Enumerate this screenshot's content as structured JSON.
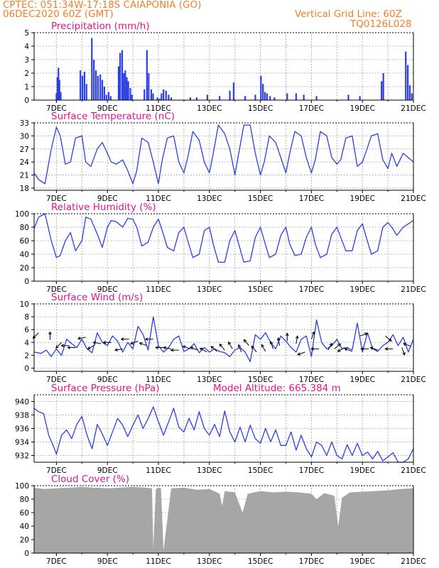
{
  "header": {
    "line1": "CPTEC:   051:34W-17:18S   CAIAPONIA (GO)",
    "line2": "06DEC2020 60Z (GMT)",
    "grid_note": "Vertical Grid Line: 60Z",
    "run_id": "TQ0126L028"
  },
  "colors": {
    "header": "#f0802a",
    "panel_title": "#e0148c",
    "series": "#2b3fe3",
    "cloud": "#a6a6a6",
    "grid": "#8a8a8a"
  },
  "x_axis": {
    "start_day": 6.125,
    "end_day": 21.0,
    "tick_days": [
      7,
      9,
      11,
      13,
      15,
      17,
      19,
      21
    ],
    "tick_labels": [
      "7DEC",
      "9DEC",
      "11DEC",
      "13DEC",
      "15DEC",
      "17DEC",
      "19DEC",
      "21DEC"
    ],
    "grid_days": [
      7,
      8,
      9,
      10,
      11,
      12,
      13,
      14,
      15,
      16,
      17,
      18,
      19,
      20
    ]
  },
  "chart_data": [
    {
      "type": "bar",
      "title": "Precipitation (mm/h)",
      "ylim": [
        0,
        5
      ],
      "yticks": [
        0,
        1,
        2,
        3,
        4,
        5
      ],
      "series": [
        {
          "x": [
            7.0,
            7.04,
            7.08,
            7.12,
            7.17,
            7.94,
            8.02,
            8.1,
            8.18,
            8.39,
            8.47,
            8.55,
            8.63,
            8.72,
            8.8,
            8.88,
            8.96,
            9.05,
            9.13,
            9.44,
            9.5,
            9.58,
            9.64,
            9.7,
            9.76,
            9.82,
            9.9,
            9.96,
            10.45,
            10.55,
            10.62,
            10.72,
            10.79,
            10.96,
            11.05,
            11.12,
            11.2,
            11.3,
            11.4,
            11.5,
            12.25,
            12.5,
            12.92,
            13.4,
            13.8,
            13.95,
            14.4,
            14.8,
            15.02,
            15.1,
            15.18,
            15.26,
            15.38,
            15.55,
            16.05,
            16.4,
            16.7,
            17.2,
            18.45,
            18.9,
            19.75,
            19.82,
            20.7,
            20.78,
            20.86,
            20.94
          ],
          "values": [
            0.5,
            1.7,
            2.4,
            1.5,
            0.6,
            2.2,
            1.8,
            2.1,
            1.2,
            4.6,
            3.0,
            2.2,
            1.8,
            1.9,
            1.5,
            1.0,
            0.4,
            0.6,
            0.3,
            2.5,
            3.5,
            3.7,
            2.0,
            2.2,
            1.7,
            1.4,
            0.9,
            0.4,
            0.8,
            3.7,
            2.0,
            0.8,
            0.5,
            0.2,
            0.1,
            0.5,
            0.8,
            0.7,
            0.4,
            0.2,
            0.2,
            0.2,
            0.4,
            0.3,
            0.7,
            1.3,
            0.3,
            0.4,
            1.8,
            1.2,
            0.6,
            0.5,
            0.3,
            0.2,
            0.5,
            0.5,
            0.4,
            0.3,
            0.4,
            0.3,
            1.4,
            2.0,
            3.6,
            2.6,
            1.1,
            0.5
          ]
        }
      ]
    },
    {
      "type": "line",
      "title": "Surface Temperature (nC)",
      "ylim": [
        17.5,
        33
      ],
      "yticks": [
        18,
        21,
        24,
        27,
        30,
        33
      ],
      "series": [
        {
          "x": [
            6.125,
            6.3,
            6.55,
            6.8,
            7.0,
            7.15,
            7.35,
            7.55,
            7.75,
            8.0,
            8.15,
            8.35,
            8.6,
            8.8,
            9.0,
            9.15,
            9.35,
            9.6,
            9.8,
            10.0,
            10.15,
            10.35,
            10.6,
            10.8,
            11.0,
            11.15,
            11.35,
            11.6,
            11.8,
            12.0,
            12.15,
            12.35,
            12.6,
            12.8,
            13.0,
            13.15,
            13.35,
            13.6,
            13.8,
            14.0,
            14.15,
            14.35,
            14.6,
            14.8,
            15.0,
            15.15,
            15.35,
            15.6,
            15.8,
            16.0,
            16.15,
            16.35,
            16.6,
            16.8,
            17.0,
            17.15,
            17.35,
            17.6,
            17.8,
            18.0,
            18.15,
            18.35,
            18.6,
            18.8,
            19.0,
            19.15,
            19.35,
            19.6,
            19.8,
            20.0,
            20.15,
            20.35,
            20.6,
            20.8,
            21.0
          ],
          "values": [
            21.5,
            20,
            19,
            27,
            32,
            30,
            23.5,
            24,
            29.5,
            30,
            24,
            23,
            27,
            28.5,
            26,
            24,
            23.5,
            24.5,
            22,
            19,
            22,
            29.5,
            28.5,
            24,
            19,
            24.5,
            29.5,
            30,
            24,
            21.5,
            25,
            31,
            29,
            24,
            21.5,
            26,
            32.5,
            30.5,
            27,
            21,
            26,
            32.5,
            32.5,
            26,
            21,
            24,
            30,
            28.5,
            25,
            21.5,
            26,
            31,
            30,
            25,
            21.5,
            24.5,
            31,
            30,
            25,
            23.5,
            24.5,
            29.5,
            30,
            23,
            24,
            26.5,
            30,
            30.5,
            24.5,
            22.5,
            26,
            23,
            26,
            25,
            24
          ]
        }
      ]
    },
    {
      "type": "line",
      "title": "Relative Humidity (%)",
      "ylim": [
        0,
        100
      ],
      "yticks": [
        0,
        20,
        40,
        60,
        80,
        100
      ],
      "series": [
        {
          "x": [
            6.125,
            6.3,
            6.55,
            6.8,
            7.0,
            7.15,
            7.35,
            7.55,
            7.75,
            8.0,
            8.15,
            8.35,
            8.6,
            8.8,
            9.0,
            9.15,
            9.35,
            9.6,
            9.8,
            10.0,
            10.15,
            10.35,
            10.6,
            10.8,
            11.0,
            11.15,
            11.35,
            11.6,
            11.8,
            12.0,
            12.15,
            12.35,
            12.6,
            12.8,
            13.0,
            13.15,
            13.35,
            13.6,
            13.8,
            14.0,
            14.15,
            14.35,
            14.6,
            14.8,
            15.0,
            15.15,
            15.35,
            15.6,
            15.8,
            16.0,
            16.15,
            16.35,
            16.6,
            16.8,
            17.0,
            17.15,
            17.35,
            17.6,
            17.8,
            18.0,
            18.15,
            18.35,
            18.6,
            18.8,
            19.0,
            19.15,
            19.35,
            19.6,
            19.8,
            20.0,
            20.15,
            20.35,
            20.6,
            20.8,
            21.0
          ],
          "values": [
            78,
            95,
            100,
            60,
            35,
            38,
            60,
            72,
            45,
            60,
            95,
            92,
            70,
            50,
            80,
            90,
            88,
            80,
            93,
            92,
            80,
            52,
            58,
            80,
            92,
            75,
            50,
            45,
            72,
            80,
            60,
            35,
            40,
            75,
            80,
            55,
            28,
            28,
            60,
            75,
            55,
            28,
            30,
            65,
            80,
            60,
            35,
            40,
            68,
            80,
            55,
            38,
            40,
            65,
            80,
            55,
            35,
            40,
            70,
            80,
            65,
            45,
            45,
            75,
            85,
            65,
            40,
            45,
            80,
            87,
            80,
            68,
            80,
            85,
            90
          ]
        }
      ]
    },
    {
      "type": "line",
      "title": "Surface Wind (m/s)",
      "ylim": [
        -0.5,
        10
      ],
      "yticks": [
        0,
        2,
        4,
        6,
        8,
        10
      ],
      "series": [
        {
          "x": [
            6.125,
            6.4,
            6.6,
            6.8,
            7.0,
            7.2,
            7.4,
            7.6,
            7.8,
            8.0,
            8.2,
            8.4,
            8.6,
            8.8,
            9.0,
            9.2,
            9.4,
            9.6,
            9.8,
            10.0,
            10.2,
            10.4,
            10.6,
            10.8,
            11.0,
            11.2,
            11.4,
            11.6,
            11.8,
            12.0,
            12.2,
            12.4,
            12.6,
            12.8,
            13.0,
            13.2,
            13.4,
            13.6,
            13.8,
            14.0,
            14.2,
            14.4,
            14.6,
            14.8,
            15.0,
            15.2,
            15.4,
            15.6,
            15.8,
            16.0,
            16.2,
            16.4,
            16.6,
            16.8,
            17.0,
            17.2,
            17.4,
            17.6,
            17.8,
            18.0,
            18.2,
            18.4,
            18.6,
            18.8,
            19.0,
            19.2,
            19.4,
            19.6,
            19.8,
            20.0,
            20.2,
            20.4,
            20.6,
            20.8,
            21.0
          ],
          "values": [
            2.5,
            2.3,
            2.8,
            1.8,
            3.0,
            2.0,
            4.5,
            3.8,
            3.2,
            4.5,
            3.0,
            2.4,
            5.5,
            4.0,
            3.5,
            5.0,
            4.2,
            2.5,
            4.0,
            3.0,
            6.5,
            5.2,
            2.8,
            8.0,
            3.5,
            2.5,
            3.2,
            4.5,
            5.0,
            2.6,
            3.0,
            3.8,
            2.4,
            3.2,
            2.5,
            3.0,
            2.6,
            2.4,
            1.8,
            2.8,
            3.2,
            2.5,
            1.0,
            5.2,
            4.5,
            5.5,
            4.0,
            3.0,
            5.0,
            4.2,
            3.2,
            2.5,
            4.5,
            5.0,
            1.8,
            7.5,
            4.0,
            3.0,
            3.5,
            4.5,
            3.0,
            3.2,
            2.8,
            7.0,
            2.5,
            5.5,
            3.0,
            2.6,
            3.5,
            4.0,
            5.2,
            3.5,
            4.8,
            2.5,
            4.5
          ]
        }
      ],
      "wind_barbs": {
        "x": [
          6.3,
          6.75,
          7.2,
          7.5,
          7.75,
          8.15,
          8.5,
          8.75,
          9.15,
          9.6,
          9.85,
          10.2,
          10.55,
          10.8,
          11.2,
          11.5,
          11.8,
          12.25,
          12.55,
          12.9,
          13.3,
          13.6,
          13.9,
          14.25,
          14.55,
          14.85,
          15.2,
          15.5,
          15.75,
          16.05,
          16.4,
          16.75,
          17.0,
          17.3,
          17.65,
          17.9,
          18.3,
          18.6,
          18.9,
          19.25,
          19.6,
          19.9,
          20.2,
          20.55,
          20.9
        ],
        "speed": [
          5.5,
          4.4,
          4.0,
          3.5,
          3.2,
          4.8,
          3.6,
          3.8,
          4.0,
          3.0,
          4.5,
          4.2,
          3.5,
          4.5,
          3.2,
          3.0,
          2.8,
          3.0,
          2.8,
          2.5,
          2.6,
          2.8,
          3.0,
          2.5,
          3.5,
          2.5,
          2.6,
          3.0,
          3.5,
          4.2,
          3.8,
          2.5,
          4.5,
          3.0,
          2.8,
          3.0,
          3.2,
          2.6,
          5.0,
          3.0,
          2.8,
          5.0,
          3.0,
          3.2,
          3.4
        ],
        "dir_deg": [
          135,
          270,
          135,
          180,
          180,
          170,
          150,
          190,
          180,
          170,
          180,
          160,
          200,
          180,
          180,
          190,
          180,
          200,
          200,
          210,
          220,
          230,
          240,
          250,
          230,
          230,
          240,
          250,
          260,
          270,
          280,
          160,
          290,
          180,
          300,
          320,
          150,
          200,
          340,
          180,
          200,
          40,
          180,
          70,
          200
        ]
      }
    },
    {
      "type": "line",
      "title": "Surface Pressure (hPa)",
      "ylim": [
        931,
        941
      ],
      "yticks": [
        932,
        934,
        936,
        938,
        940
      ],
      "series": [
        {
          "x": [
            6.125,
            6.3,
            6.5,
            6.7,
            6.9,
            7.0,
            7.2,
            7.4,
            7.6,
            7.8,
            8.0,
            8.2,
            8.4,
            8.6,
            8.8,
            9.0,
            9.2,
            9.4,
            9.6,
            9.8,
            10.0,
            10.2,
            10.4,
            10.6,
            10.8,
            11.0,
            11.2,
            11.4,
            11.6,
            11.8,
            12.0,
            12.2,
            12.4,
            12.6,
            12.8,
            13.0,
            13.2,
            13.4,
            13.6,
            13.8,
            14.0,
            14.2,
            14.4,
            14.6,
            14.8,
            15.0,
            15.2,
            15.4,
            15.6,
            15.8,
            16.0,
            16.2,
            16.4,
            16.6,
            16.8,
            17.0,
            17.2,
            17.4,
            17.6,
            17.8,
            18.0,
            18.2,
            18.4,
            18.6,
            18.8,
            19.0,
            19.2,
            19.4,
            19.6,
            19.8,
            20.0,
            20.2,
            20.4,
            20.6,
            20.8,
            21.0
          ],
          "values": [
            939.0,
            938.5,
            938.2,
            935.0,
            933.2,
            932.2,
            935.0,
            935.8,
            934.5,
            936.6,
            937.8,
            935.0,
            933.0,
            936.6,
            935.2,
            933.5,
            935.5,
            937.5,
            936.5,
            934.8,
            936.5,
            938.0,
            936.0,
            937.5,
            939.2,
            937.0,
            935.0,
            937.0,
            939.0,
            936.2,
            935.5,
            937.5,
            935.8,
            938.5,
            936.0,
            935.0,
            936.6,
            934.8,
            938.6,
            935.5,
            934.0,
            936.2,
            934.0,
            936.5,
            934.5,
            933.8,
            936.0,
            934.0,
            935.8,
            933.5,
            933.5,
            935.5,
            932.8,
            935.0,
            933.0,
            931.8,
            934.0,
            933.5,
            932.0,
            934.0,
            932.0,
            931.5,
            933.6,
            932.0,
            933.8,
            932.0,
            932.5,
            931.5,
            932.6,
            931.2,
            931.8,
            932.4,
            931.0,
            931.0,
            931.5,
            933.0
          ]
        }
      ],
      "annotation": "Model Altitude: 665.384 m"
    },
    {
      "type": "area",
      "title": "Cloud Cover (%)",
      "ylim": [
        0,
        100
      ],
      "yticks": [
        0,
        20,
        40,
        60,
        80,
        100
      ],
      "series": [
        {
          "x": [
            6.125,
            6.5,
            7.0,
            7.5,
            8.0,
            8.5,
            9.0,
            9.5,
            10.0,
            10.5,
            10.75,
            10.8,
            10.9,
            11.0,
            11.1,
            11.2,
            11.5,
            12.0,
            12.5,
            13.0,
            13.4,
            13.5,
            13.6,
            14.0,
            14.3,
            14.5,
            15.0,
            15.5,
            16.0,
            16.5,
            17.0,
            17.2,
            17.5,
            17.9,
            18.05,
            18.2,
            18.5,
            19.0,
            19.5,
            20.0,
            20.5,
            21.0
          ],
          "values": [
            97,
            95,
            96,
            97,
            98,
            97,
            96,
            97,
            98,
            97,
            96,
            8,
            95,
            97,
            96,
            4,
            96,
            97,
            94,
            95,
            88,
            70,
            92,
            90,
            60,
            88,
            92,
            90,
            91,
            90,
            88,
            80,
            89,
            85,
            40,
            82,
            90,
            91,
            92,
            93,
            95,
            96
          ]
        }
      ]
    }
  ]
}
